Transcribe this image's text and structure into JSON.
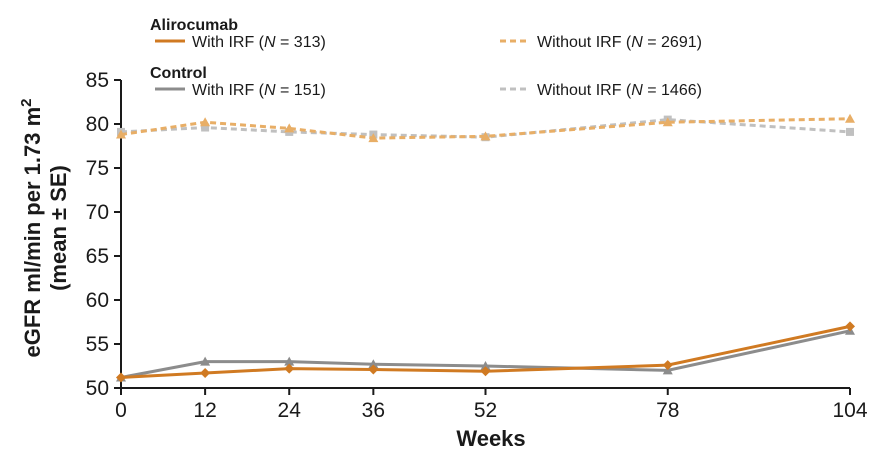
{
  "legend": {
    "groups": [
      {
        "title": "Alirocumab",
        "entries": [
          {
            "prefix": "With IRF (",
            "n_letter": "N",
            "suffix": " = 313)",
            "series": 0
          },
          {
            "prefix": "Without IRF (",
            "n_letter": "N",
            "suffix": " = 2691)",
            "series": 1
          }
        ]
      },
      {
        "title": "Control",
        "entries": [
          {
            "prefix": "With IRF (",
            "n_letter": "N",
            "suffix": " = 151)",
            "series": 2
          },
          {
            "prefix": "Without IRF (",
            "n_letter": "N",
            "suffix": " = 1466)",
            "series": 3
          }
        ]
      }
    ]
  },
  "chart_data": {
    "type": "line",
    "xlabel": "Weeks",
    "ylabel_line1": "eGFR ml/min per 1.73 m",
    "ylabel_sup": "2",
    "ylabel_line2": "(mean ± SE)",
    "x": [
      0,
      12,
      24,
      36,
      52,
      78,
      104
    ],
    "x_ticks": [
      "0",
      "12",
      "24",
      "36",
      "52",
      "78",
      "104"
    ],
    "ylim": [
      50,
      85
    ],
    "y_ticks": [
      50,
      55,
      60,
      65,
      70,
      75,
      80,
      85
    ],
    "grid": false,
    "legend_position": "top",
    "series": [
      {
        "name": "Alirocumab With IRF (N = 313)",
        "color": "#d07a22",
        "dash": "solid",
        "marker": "diamond",
        "values": [
          51.2,
          51.7,
          52.2,
          52.1,
          51.9,
          52.6,
          57.0
        ]
      },
      {
        "name": "Alirocumab Without IRF (N = 2691)",
        "color": "#e8ae66",
        "dash": "dashed",
        "marker": "triangle",
        "values": [
          78.8,
          80.2,
          79.5,
          78.4,
          78.6,
          80.2,
          80.6
        ]
      },
      {
        "name": "Control With IRF (N = 151)",
        "color": "#8c8c8c",
        "dash": "solid",
        "marker": "triangle",
        "values": [
          51.2,
          53.0,
          53.0,
          52.7,
          52.5,
          52.0,
          56.5
        ]
      },
      {
        "name": "Control Without IRF (N = 1466)",
        "color": "#c0c0c0",
        "dash": "dashed",
        "marker": "square",
        "values": [
          79.1,
          79.6,
          79.1,
          78.8,
          78.5,
          80.5,
          79.1
        ]
      }
    ]
  }
}
